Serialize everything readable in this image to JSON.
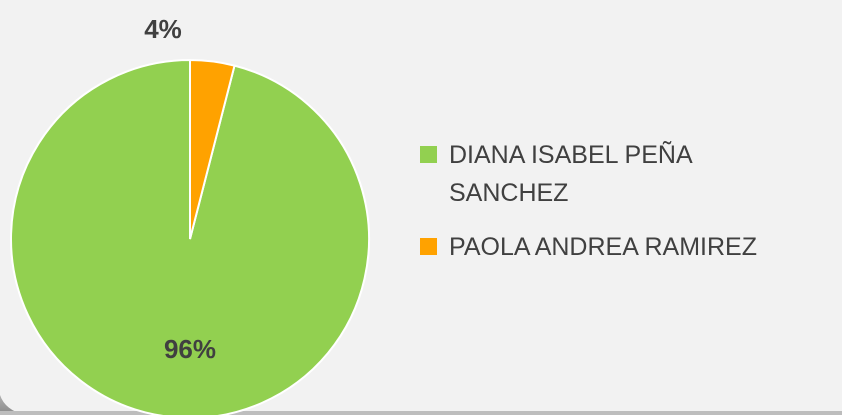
{
  "chart_data": {
    "type": "pie",
    "title": "",
    "slices": [
      {
        "name": "DIANA ISABEL PEÑA SANCHEZ",
        "value": 96,
        "label": "96%",
        "color": "#92d050"
      },
      {
        "name": "PAOLA ANDREA RAMIREZ",
        "value": 4,
        "label": "4%",
        "color": "#ffa200"
      }
    ],
    "legend": {
      "position": "right",
      "items": [
        {
          "label": "DIANA ISABEL PEÑA SANCHEZ",
          "color": "#92d050"
        },
        {
          "label": "PAOLA ANDREA RAMIREZ",
          "color": "#ffa200"
        }
      ]
    }
  }
}
